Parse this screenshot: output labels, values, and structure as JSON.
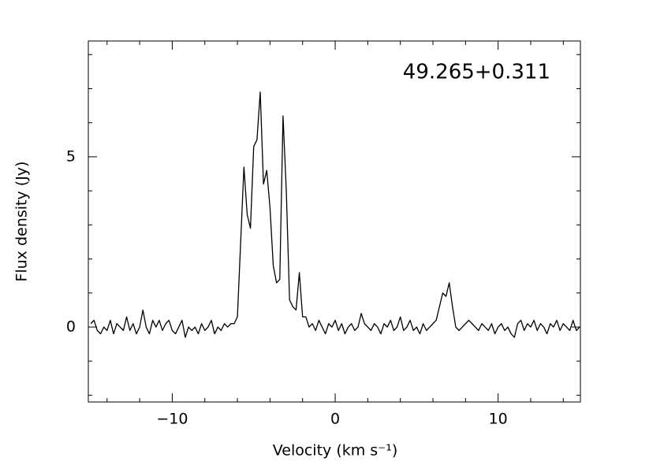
{
  "chart_data": {
    "type": "line",
    "annotation": "49.265+0.311",
    "xlabel": "Velocity (km s⁻¹)",
    "ylabel": "Flux density (Jy)",
    "xlim": [
      -15.15,
      15.05
    ],
    "ylim": [
      -2.2,
      8.4
    ],
    "xticks": [
      {
        "value": -10,
        "label": "−10"
      },
      0,
      10
    ],
    "yticks": [
      0,
      5
    ],
    "xminorticks": [
      -14,
      -12,
      -8,
      -6,
      -4,
      -2,
      2,
      4,
      6,
      8,
      12,
      14
    ],
    "yminorticks": [
      -2,
      -1,
      1,
      2,
      3,
      4,
      6,
      7,
      8
    ],
    "color": "#000000",
    "x": [
      -15.0,
      -14.8,
      -14.6,
      -14.4,
      -14.2,
      -14.0,
      -13.8,
      -13.6,
      -13.4,
      -13.2,
      -13.0,
      -12.8,
      -12.6,
      -12.4,
      -12.2,
      -12.0,
      -11.8,
      -11.6,
      -11.4,
      -11.2,
      -11.0,
      -10.8,
      -10.6,
      -10.4,
      -10.2,
      -10.0,
      -9.8,
      -9.6,
      -9.4,
      -9.2,
      -9.0,
      -8.8,
      -8.6,
      -8.4,
      -8.2,
      -8.0,
      -7.8,
      -7.6,
      -7.4,
      -7.2,
      -7.0,
      -6.8,
      -6.6,
      -6.4,
      -6.2,
      -6.0,
      -5.8,
      -5.6,
      -5.4,
      -5.2,
      -5.0,
      -4.8,
      -4.6,
      -4.4,
      -4.2,
      -4.0,
      -3.8,
      -3.6,
      -3.4,
      -3.2,
      -3.0,
      -2.8,
      -2.6,
      -2.4,
      -2.2,
      -2.0,
      -1.8,
      -1.6,
      -1.4,
      -1.2,
      -1.0,
      -0.8,
      -0.6,
      -0.4,
      -0.2,
      0.0,
      0.2,
      0.4,
      0.6,
      0.8,
      1.0,
      1.2,
      1.4,
      1.6,
      1.8,
      2.0,
      2.2,
      2.4,
      2.6,
      2.8,
      3.0,
      3.2,
      3.4,
      3.6,
      3.8,
      4.0,
      4.2,
      4.4,
      4.6,
      4.8,
      5.0,
      5.2,
      5.4,
      5.6,
      5.8,
      6.0,
      6.2,
      6.4,
      6.6,
      6.8,
      7.0,
      7.2,
      7.4,
      7.6,
      7.8,
      8.0,
      8.2,
      8.4,
      8.6,
      8.8,
      9.0,
      9.2,
      9.4,
      9.6,
      9.8,
      10.0,
      10.2,
      10.4,
      10.6,
      10.8,
      11.0,
      11.2,
      11.4,
      11.6,
      11.8,
      12.0,
      12.2,
      12.4,
      12.6,
      12.8,
      13.0,
      13.2,
      13.4,
      13.6,
      13.8,
      14.0,
      14.2,
      14.4,
      14.6,
      14.8,
      15.0
    ],
    "values": [
      0.1,
      0.2,
      -0.1,
      -0.2,
      0.0,
      -0.1,
      0.2,
      -0.2,
      0.1,
      0.0,
      -0.1,
      0.3,
      -0.1,
      0.1,
      -0.2,
      0.0,
      0.5,
      0.0,
      -0.2,
      0.2,
      0.0,
      0.2,
      -0.1,
      0.1,
      0.2,
      -0.1,
      -0.2,
      0.0,
      0.2,
      -0.3,
      0.0,
      -0.1,
      0.0,
      -0.2,
      0.1,
      -0.1,
      0.0,
      0.2,
      -0.2,
      0.0,
      -0.1,
      0.1,
      0.0,
      0.1,
      0.1,
      0.3,
      2.5,
      4.7,
      3.3,
      2.9,
      5.3,
      5.5,
      6.9,
      4.2,
      4.6,
      3.5,
      1.8,
      1.3,
      1.4,
      6.2,
      4.0,
      0.8,
      0.6,
      0.5,
      1.6,
      0.3,
      0.3,
      0.0,
      0.1,
      -0.1,
      0.2,
      0.0,
      -0.2,
      0.1,
      0.0,
      0.2,
      -0.1,
      0.1,
      -0.2,
      0.0,
      0.1,
      -0.1,
      0.0,
      0.4,
      0.1,
      0.0,
      -0.1,
      0.1,
      0.0,
      -0.2,
      0.1,
      0.0,
      0.2,
      -0.1,
      0.0,
      0.3,
      -0.1,
      0.0,
      0.2,
      -0.1,
      0.0,
      -0.2,
      0.1,
      -0.1,
      0.0,
      0.1,
      0.2,
      0.6,
      1.0,
      0.9,
      1.3,
      0.6,
      0.0,
      -0.1,
      0.0,
      0.1,
      0.2,
      0.1,
      0.0,
      -0.1,
      0.1,
      0.0,
      -0.1,
      0.1,
      -0.2,
      0.0,
      0.1,
      -0.1,
      0.0,
      -0.2,
      -0.3,
      0.1,
      0.2,
      -0.1,
      0.1,
      0.0,
      0.2,
      -0.1,
      0.1,
      0.0,
      -0.2,
      0.1,
      0.0,
      0.2,
      -0.1,
      0.1,
      0.0,
      -0.1,
      0.2,
      -0.1,
      0.0
    ]
  }
}
